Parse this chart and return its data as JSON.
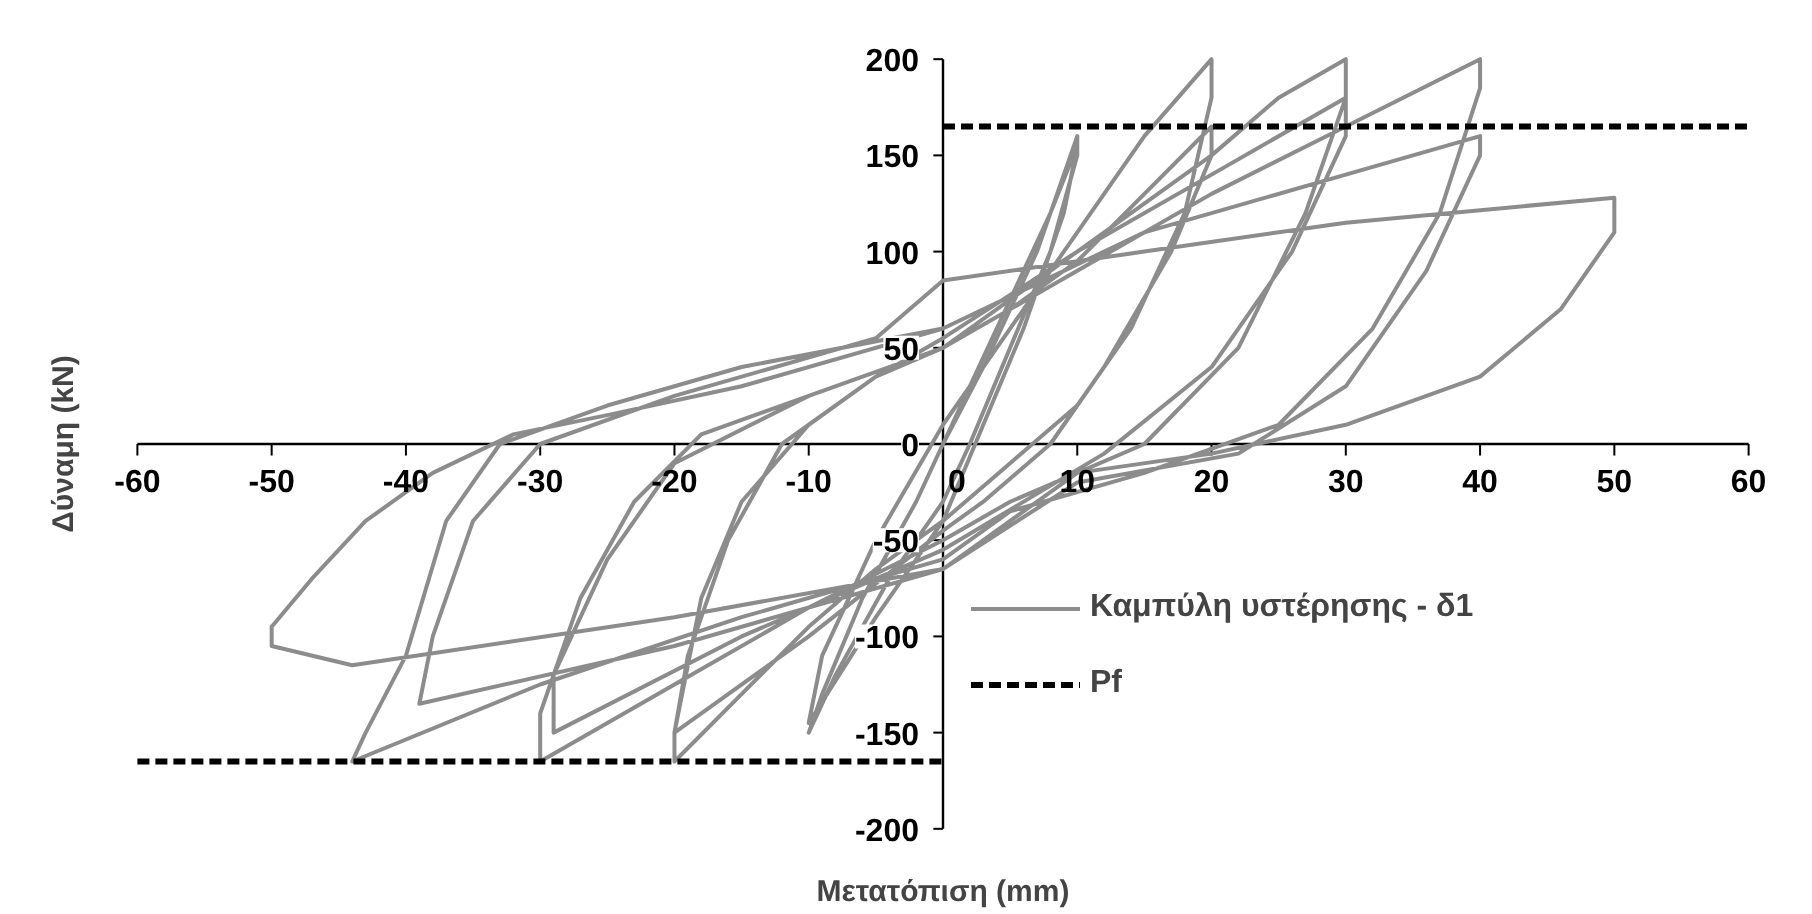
{
  "chart_data": {
    "type": "line",
    "xlabel": "Μετατόπιση (mm)",
    "ylabel": "Δύναμη (kN)",
    "xlim": [
      -60,
      60
    ],
    "ylim": [
      -200,
      200
    ],
    "xticks": [
      -60,
      -50,
      -40,
      -30,
      -20,
      -10,
      0,
      10,
      20,
      30,
      40,
      50,
      60
    ],
    "yticks": [
      -200,
      -150,
      -100,
      -50,
      0,
      50,
      100,
      150,
      200
    ],
    "grid": false,
    "legend": "right",
    "series": [
      {
        "name": "Καμπύλη υστέρησης - δ1",
        "color": "#8c8c8c",
        "line_style": "solid",
        "x": [
          0,
          3,
          7,
          10,
          10,
          8,
          5,
          2,
          0,
          -4,
          -8,
          -10,
          -9,
          -6,
          -2,
          0,
          4,
          8,
          10,
          9,
          6,
          3,
          0,
          -5,
          -10,
          -9,
          -5,
          0,
          5,
          10,
          15,
          20,
          20,
          18,
          14,
          10,
          5,
          0,
          -5,
          -10,
          -15,
          -20,
          -20,
          -18,
          -15,
          -10,
          -5,
          0,
          5,
          10,
          15,
          20,
          20,
          17,
          12,
          8,
          3,
          0,
          -10,
          -20,
          -19,
          -16,
          -12,
          -5,
          0,
          10,
          20,
          25,
          30,
          30,
          27,
          22,
          15,
          5,
          0,
          -10,
          -20,
          -30,
          -30,
          -27,
          -23,
          -18,
          -10,
          0,
          10,
          20,
          30,
          30,
          26,
          20,
          12,
          0,
          -15,
          -29,
          -29,
          -25,
          -20,
          -10,
          0,
          10,
          20,
          30,
          40,
          40,
          37,
          32,
          25,
          15,
          5,
          0,
          -15,
          -30,
          -44,
          -43,
          -40,
          -37,
          -33,
          -25,
          -15,
          0,
          15,
          30,
          40,
          40,
          36,
          30,
          22,
          10,
          0,
          -20,
          -39,
          -38,
          -35,
          -30,
          -20,
          -5,
          0,
          15,
          30,
          50,
          50,
          46,
          40,
          30,
          20,
          10,
          0,
          -20,
          -44,
          -50,
          -50,
          -47,
          -43,
          -38,
          -32,
          -25,
          -15,
          0
        ],
        "values": [
          0,
          40,
          100,
          160,
          150,
          100,
          50,
          0,
          -30,
          -70,
          -120,
          -150,
          -130,
          -80,
          -30,
          0,
          60,
          120,
          155,
          120,
          60,
          10,
          -40,
          -90,
          -145,
          -110,
          -50,
          10,
          60,
          110,
          160,
          200,
          180,
          120,
          60,
          20,
          -10,
          -40,
          -65,
          -95,
          -130,
          -165,
          -150,
          -80,
          -30,
          10,
          35,
          50,
          70,
          95,
          130,
          165,
          150,
          100,
          40,
          0,
          -30,
          -45,
          -100,
          -150,
          -110,
          -50,
          0,
          35,
          55,
          100,
          150,
          180,
          200,
          180,
          120,
          50,
          0,
          -30,
          -50,
          -85,
          -125,
          -165,
          -140,
          -80,
          -30,
          5,
          25,
          50,
          100,
          140,
          180,
          160,
          100,
          40,
          -5,
          -55,
          -100,
          -150,
          -120,
          -60,
          -10,
          25,
          50,
          90,
          130,
          165,
          200,
          185,
          120,
          60,
          10,
          -15,
          -35,
          -60,
          -90,
          -125,
          -165,
          -150,
          -110,
          -40,
          0,
          20,
          40,
          60,
          110,
          140,
          160,
          150,
          90,
          30,
          -5,
          -20,
          -65,
          -105,
          -135,
          -100,
          -40,
          0,
          25,
          55,
          85,
          100,
          115,
          128,
          110,
          70,
          35,
          10,
          -5,
          -15,
          -65,
          -90,
          -115,
          -105,
          -95,
          -70,
          -40,
          -15,
          5,
          15,
          30,
          60
        ]
      },
      {
        "name": "Pf",
        "color": "#000000",
        "line_style": "dashed",
        "x": [
          0,
          60,
          null,
          -60,
          0
        ],
        "values": [
          165,
          165,
          null,
          -165,
          -165
        ]
      }
    ]
  }
}
